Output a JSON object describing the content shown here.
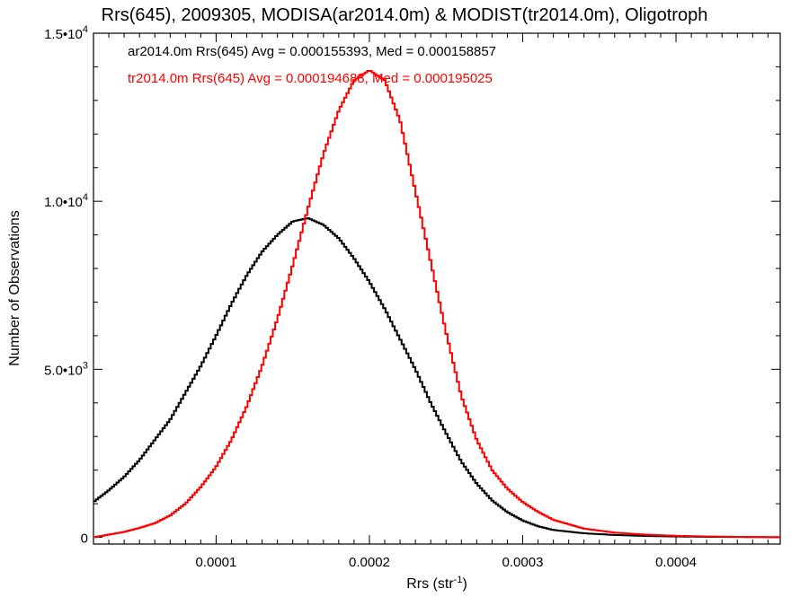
{
  "chart_data": {
    "type": "line",
    "title": "Rrs(645), 2009305, MODISA(ar2014.0m) & MODIST(tr2014.0m), Oligotroph",
    "xlabel_main": "Rrs (str",
    "xlabel_sup": "-1",
    "xlabel_close": ")",
    "ylabel": "Number of Observations",
    "xlim": [
      2e-05,
      0.000468
    ],
    "ylim": [
      -200,
      15000
    ],
    "x_ticks": [
      {
        "value": 0.0001,
        "label": "0.0001"
      },
      {
        "value": 0.0002,
        "label": "0.0002"
      },
      {
        "value": 0.0003,
        "label": "0.0003"
      },
      {
        "value": 0.0004,
        "label": "0.0004"
      }
    ],
    "y_ticks": [
      {
        "value": 0,
        "label": "0",
        "exp": ""
      },
      {
        "value": 5000,
        "label": "5.0•10",
        "exp": "3"
      },
      {
        "value": 10000,
        "label": "1.0•10",
        "exp": "4"
      },
      {
        "value": 15000,
        "label": "1.5•10",
        "exp": "4"
      }
    ],
    "grid": false,
    "legend_placement": "top-left",
    "series": [
      {
        "name": "ar2014.0m Rrs(645) Avg = 0.000155393, Med = 0.000158857",
        "color": "#000000",
        "x": [
          2e-05,
          3e-05,
          4e-05,
          5e-05,
          6e-05,
          7e-05,
          8e-05,
          9e-05,
          0.0001,
          0.00011,
          0.00012,
          0.00013,
          0.00014,
          0.00015,
          0.00016,
          0.00017,
          0.00018,
          0.00019,
          0.0002,
          0.00021,
          0.00022,
          0.00023,
          0.00024,
          0.00025,
          0.00026,
          0.00027,
          0.00028,
          0.00029,
          0.0003,
          0.00031,
          0.00032,
          0.00034,
          0.00036,
          0.00038,
          0.0004,
          0.00042,
          0.00044,
          0.00046,
          0.000468
        ],
        "y": [
          1050,
          1400,
          1800,
          2300,
          2900,
          3500,
          4300,
          5100,
          6000,
          6950,
          7800,
          8500,
          9000,
          9400,
          9500,
          9300,
          8900,
          8300,
          7600,
          6800,
          5900,
          5000,
          4000,
          3100,
          2250,
          1600,
          1100,
          750,
          500,
          330,
          220,
          120,
          70,
          40,
          25,
          15,
          10,
          5,
          3
        ]
      },
      {
        "name": "tr2014.0m Rrs(645) Avg = 0.000194688, Med = 0.000195025",
        "color": "#ff0000",
        "x": [
          2e-05,
          3e-05,
          4e-05,
          5e-05,
          6e-05,
          7e-05,
          8e-05,
          9e-05,
          0.0001,
          0.00011,
          0.00012,
          0.00013,
          0.00014,
          0.00015,
          0.00016,
          0.00017,
          0.00018,
          0.00019,
          0.0002,
          0.00021,
          0.00022,
          0.00023,
          0.00024,
          0.00025,
          0.00026,
          0.00027,
          0.00028,
          0.00029,
          0.0003,
          0.00031,
          0.00032,
          0.00034,
          0.00036,
          0.00038,
          0.0004,
          0.00042,
          0.00044,
          0.00046,
          0.000468
        ],
        "y": [
          0,
          80,
          160,
          280,
          420,
          650,
          1000,
          1500,
          2100,
          2900,
          3900,
          5100,
          6500,
          8100,
          9800,
          11400,
          12700,
          13600,
          13900,
          13600,
          12400,
          10300,
          8200,
          6100,
          4200,
          2900,
          2000,
          1450,
          1050,
          760,
          520,
          260,
          140,
          80,
          45,
          25,
          15,
          8,
          5
        ]
      }
    ]
  }
}
